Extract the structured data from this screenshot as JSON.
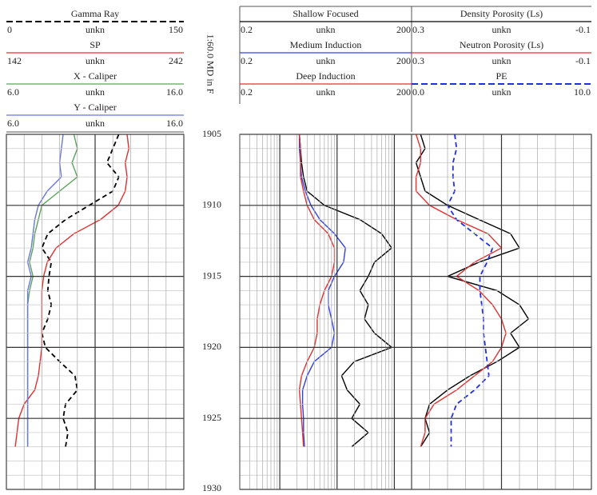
{
  "chart_data": {
    "type": "well-log",
    "depth_label": "1:60.0 MD in F",
    "ylim": [
      1905,
      1930
    ],
    "yticks": [
      1905,
      1910,
      1915,
      1920,
      1925,
      1930
    ],
    "minor_yticks": [
      1906,
      1907,
      1908,
      1909,
      1911,
      1912,
      1913,
      1914,
      1916,
      1917,
      1918,
      1919,
      1921,
      1922,
      1923,
      1924,
      1926,
      1927,
      1928,
      1929
    ],
    "depth": [
      1905,
      1906,
      1907,
      1908,
      1909,
      1910,
      1911,
      1912,
      1913,
      1914,
      1915,
      1916,
      1917,
      1918,
      1919,
      1920,
      1921,
      1922,
      1923,
      1924,
      1925,
      1926,
      1927
    ],
    "tracks": [
      {
        "scale": "linear",
        "xticks": [
          0,
          15,
          30,
          45,
          60,
          75,
          90,
          105,
          120,
          135,
          150
        ],
        "series": [
          {
            "name": "Gamma Ray",
            "unit": "unkn",
            "color": "#000000",
            "dashed": true,
            "scale": [
              0,
              150
            ],
            "values": [
              95,
              90,
              85,
              95,
              90,
              70,
              50,
              35,
              30,
              38,
              36,
              35,
              38,
              35,
              30,
              33,
              45,
              58,
              60,
              50,
              48,
              52,
              50
            ]
          },
          {
            "name": "SP",
            "unit": "unkn",
            "color": "#e03030",
            "dashed": false,
            "scale": [
              142,
              242
            ],
            "values": [
              210,
              211,
              209,
              210,
              209,
              205,
              195,
              180,
              170,
              165,
              163,
              162,
              162,
              162,
              162,
              162,
              161,
              160,
              158,
              152,
              149,
              148,
              147
            ]
          },
          {
            "name": "X - Caliper",
            "unit": "unkn",
            "color": "#5aa35a",
            "dashed": false,
            "scale": [
              {
                "value": 6,
                "label": "6.0"
              },
              {
                "value": 16,
                "label": "16.0"
              }
            ],
            "values": [
              9.8,
              10.0,
              9.7,
              10.0,
              9.0,
              8.0,
              7.8,
              7.6,
              7.5,
              7.3,
              7.5,
              7.3,
              7.2,
              7.2,
              7.2,
              7.2,
              7.2,
              7.2,
              7.2,
              7.2,
              7.2,
              7.2,
              7.2
            ]
          },
          {
            "name": "Y - Caliper",
            "unit": "unkn",
            "color": "#6a78d8",
            "dashed": false,
            "scale": [
              {
                "value": 6,
                "label": "6.0"
              },
              {
                "value": 16,
                "label": "16.0"
              }
            ],
            "values": [
              9.2,
              9.1,
              9.0,
              9.1,
              8.3,
              7.8,
              7.6,
              7.5,
              7.4,
              7.2,
              7.4,
              7.2,
              7.2,
              7.2,
              7.2,
              7.2,
              7.2,
              7.2,
              7.2,
              7.2,
              7.2,
              7.2,
              7.2
            ]
          }
        ]
      },
      {
        "scale": "log",
        "xticks": [
          0.2,
          0.3,
          0.4,
          0.5,
          0.6,
          0.7,
          0.8,
          0.9,
          1,
          2,
          3,
          4,
          5,
          6,
          7,
          8,
          9,
          10,
          20,
          30,
          40,
          50,
          60,
          70,
          80,
          90,
          100,
          200
        ],
        "series": [
          {
            "name": "Shallow Focused",
            "unit": "unkn",
            "color": "#000000",
            "dashed": false,
            "scale": [
              0.2,
              200
            ],
            "values": [
              2.2,
              2.3,
              2.4,
              2.6,
              3,
              6,
              25,
              60,
              90,
              45,
              35,
              25,
              35,
              30,
              45,
              90,
              20,
              12,
              15,
              25,
              18,
              35,
              18
            ]
          },
          {
            "name": "Medium Induction",
            "unit": "unkn",
            "color": "#3040e0",
            "dashed": false,
            "scale": [
              0.2,
              200
            ],
            "values": [
              2.2,
              2.2,
              2.3,
              2.4,
              2.8,
              3.5,
              5,
              9,
              14,
              13,
              9,
              7,
              7,
              8,
              9,
              8,
              4,
              3,
              2.5,
              2.5,
              2.6,
              2.6,
              2.7
            ]
          },
          {
            "name": "Deep Induction",
            "unit": "unkn",
            "color": "#e03030",
            "dashed": false,
            "scale": [
              0.2,
              200
            ],
            "values": [
              2.2,
              2.3,
              2.3,
              2.3,
              2.6,
              3,
              4,
              7,
              9,
              9,
              8,
              6,
              5,
              4.5,
              4.5,
              4,
              3,
              2.4,
              2.2,
              2.3,
              2.4,
              2.5,
              2.6
            ]
          }
        ]
      },
      {
        "scale": "linear",
        "xticks": [
          0.3,
          0.26,
          0.22,
          0.18,
          0.14,
          0.1,
          0.06,
          0.02,
          -0.02,
          -0.06,
          -0.1
        ],
        "series": [
          {
            "name": "Density Porosity (Ls)",
            "unit": "unkn",
            "color": "#000000",
            "dashed": false,
            "scale": [
              0.3,
              -0.1
            ],
            "values": [
              0.28,
              0.27,
              0.29,
              0.28,
              0.27,
              0.22,
              0.15,
              0.08,
              0.06,
              0.15,
              0.22,
              0.11,
              0.06,
              0.04,
              0.08,
              0.06,
              0.11,
              0.17,
              0.22,
              0.26,
              0.27,
              0.26,
              0.28
            ]
          },
          {
            "name": "Neutron Porosity (Ls)",
            "unit": "unkn",
            "color": "#e03030",
            "dashed": false,
            "scale": [
              0.3,
              -0.1
            ],
            "values": [
              0.29,
              0.28,
              0.28,
              0.29,
              0.29,
              0.26,
              0.2,
              0.13,
              0.1,
              0.16,
              0.2,
              0.15,
              0.12,
              0.1,
              0.09,
              0.1,
              0.12,
              0.16,
              0.2,
              0.25,
              0.27,
              0.27,
              0.28
            ]
          },
          {
            "name": "PE",
            "unit": "unkn",
            "color": "#2030e0",
            "dashed": true,
            "scale": [
              {
                "value": 0,
                "label": "0.0"
              },
              {
                "value": 10,
                "label": "10.0"
              }
            ],
            "values": [
              2.4,
              2.5,
              2.3,
              2.3,
              2.4,
              2.0,
              2.5,
              3.5,
              4.5,
              4.2,
              3.8,
              3.8,
              3.9,
              4.0,
              4.0,
              4.1,
              4.2,
              4.3,
              3.5,
              2.5,
              2.2,
              2.2,
              2.2
            ]
          }
        ]
      }
    ]
  }
}
